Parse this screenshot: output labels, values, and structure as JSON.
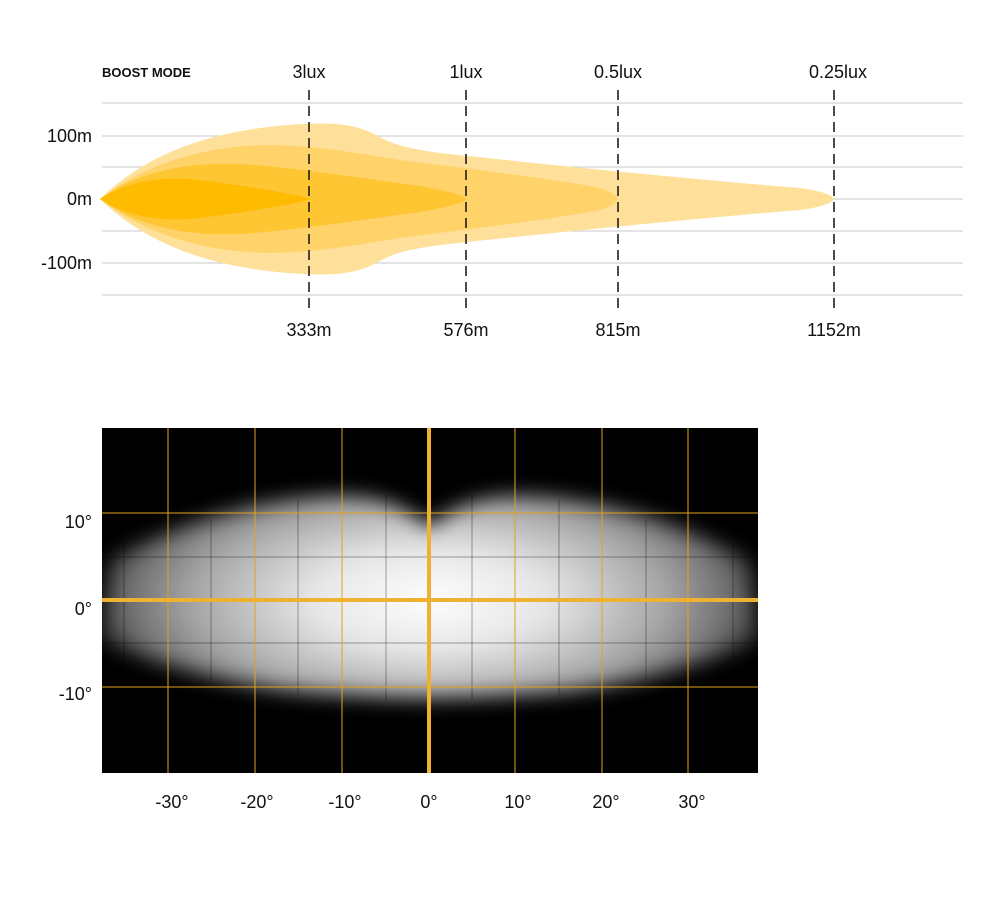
{
  "colors": {
    "beam_outer": "#FFE09A",
    "beam_mid1": "#FFD36A",
    "beam_mid2": "#FFC633",
    "beam_core": "#FFBB00",
    "gridline": "#c8c8c8",
    "spot_grid": "#E0A420",
    "spot_bg": "#000000"
  },
  "chart_data": [
    {
      "type": "area",
      "mode_label": "BOOST MODE",
      "y_ticks": [
        "100m",
        "0m",
        "-100m"
      ],
      "x_unit": "m",
      "isolux": [
        {
          "lux": "3lux",
          "distance": "333m",
          "distance_value": 333
        },
        {
          "lux": "1lux",
          "distance": "576m",
          "distance_value": 576
        },
        {
          "lux": "0.5lux",
          "distance": "815m",
          "distance_value": 815
        },
        {
          "lux": "0.25lux",
          "distance": "1152m",
          "distance_value": 1152
        }
      ],
      "x_range": [
        0,
        1350
      ],
      "y_range": [
        -150,
        150
      ],
      "grid": true
    },
    {
      "type": "heatmap",
      "y_ticks": [
        "10°",
        "0°",
        "-10°"
      ],
      "x_ticks": [
        "-30°",
        "-20°",
        "-10°",
        "0°",
        "10°",
        "20°",
        "30°"
      ],
      "x_range": [
        -38,
        38
      ],
      "y_range": [
        -20,
        20
      ],
      "grid": true
    }
  ]
}
